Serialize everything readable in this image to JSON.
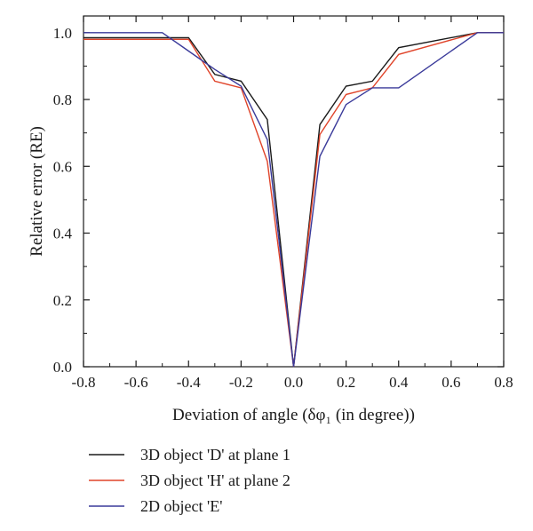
{
  "chart_data": {
    "type": "line",
    "xlabel": "Deviation of angle (δφ₁ (in degree))",
    "ylabel": "Relative error (RE)",
    "xlim": [
      -0.8,
      0.8
    ],
    "ylim": [
      0.0,
      1.05
    ],
    "x_ticks": [
      "-0.8",
      "-0.6",
      "-0.4",
      "-0.2",
      "0.0",
      "0.2",
      "0.4",
      "0.6",
      "0.8"
    ],
    "y_ticks": [
      "0.0",
      "0.2",
      "0.4",
      "0.6",
      "0.8",
      "1.0"
    ],
    "grid": false,
    "legend_position": "bottom",
    "series": [
      {
        "name": "3D object 'D' at plane 1",
        "color": "#1a1a1a",
        "points": [
          [
            -0.8,
            0.985
          ],
          [
            -0.4,
            0.985
          ],
          [
            -0.3,
            0.875
          ],
          [
            -0.2,
            0.855
          ],
          [
            -0.1,
            0.74
          ],
          [
            0.0,
            0.0
          ],
          [
            0.1,
            0.725
          ],
          [
            0.2,
            0.84
          ],
          [
            0.3,
            0.855
          ],
          [
            0.4,
            0.955
          ],
          [
            0.7,
            1.0
          ],
          [
            0.8,
            1.0
          ]
        ]
      },
      {
        "name": "3D object 'H' at plane 2",
        "color": "#e0442a",
        "points": [
          [
            -0.8,
            0.98
          ],
          [
            -0.4,
            0.98
          ],
          [
            -0.3,
            0.855
          ],
          [
            -0.2,
            0.835
          ],
          [
            -0.1,
            0.615
          ],
          [
            0.0,
            0.0
          ],
          [
            0.1,
            0.695
          ],
          [
            0.2,
            0.815
          ],
          [
            0.3,
            0.835
          ],
          [
            0.4,
            0.935
          ],
          [
            0.7,
            1.0
          ],
          [
            0.8,
            1.0
          ]
        ]
      },
      {
        "name": "2D object 'E'",
        "color": "#3a3a9a",
        "points": [
          [
            -0.8,
            1.0
          ],
          [
            -0.5,
            1.0
          ],
          [
            -0.4,
            0.945
          ],
          [
            -0.3,
            0.89
          ],
          [
            -0.2,
            0.84
          ],
          [
            -0.1,
            0.68
          ],
          [
            0.0,
            0.0
          ],
          [
            0.1,
            0.63
          ],
          [
            0.2,
            0.785
          ],
          [
            0.3,
            0.835
          ],
          [
            0.4,
            0.835
          ],
          [
            0.7,
            1.0
          ],
          [
            0.8,
            1.0
          ]
        ]
      }
    ]
  }
}
